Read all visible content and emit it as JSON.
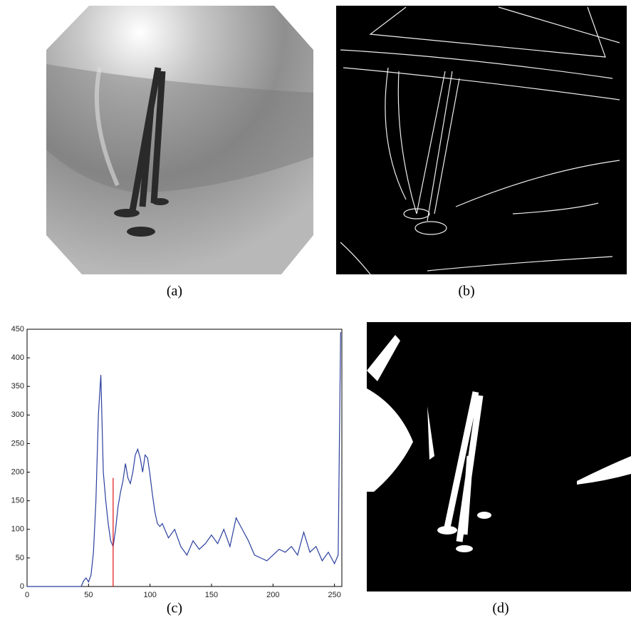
{
  "captions": [
    "(a)",
    "(b)",
    "(c)",
    "(d)"
  ],
  "chart_data": {
    "type": "line",
    "xlim": [
      0,
      256
    ],
    "xticks": [
      0,
      50,
      100,
      150,
      200,
      250
    ],
    "ylim": [
      0,
      450
    ],
    "yticks": [
      0,
      50,
      100,
      150,
      200,
      250,
      300,
      350,
      400,
      450
    ],
    "series": [
      {
        "color": "#2b3f9e",
        "x": [
          0,
          44,
          46,
          48,
          50,
          52,
          54,
          56,
          58,
          60,
          62,
          64,
          66,
          68,
          70,
          72,
          74,
          76,
          78,
          80,
          82,
          84,
          86,
          88,
          90,
          92,
          94,
          96,
          98,
          100,
          102,
          104,
          106,
          108,
          110,
          115,
          120,
          125,
          130,
          135,
          140,
          145,
          150,
          155,
          160,
          165,
          170,
          175,
          180,
          185,
          190,
          195,
          200,
          205,
          210,
          215,
          220,
          225,
          230,
          235,
          240,
          245,
          250,
          253,
          255
        ],
        "values": [
          0,
          0,
          10,
          15,
          8,
          20,
          60,
          150,
          300,
          370,
          200,
          150,
          110,
          80,
          70,
          100,
          140,
          165,
          185,
          215,
          190,
          180,
          200,
          230,
          240,
          225,
          200,
          230,
          225,
          195,
          160,
          130,
          110,
          105,
          110,
          85,
          100,
          70,
          55,
          80,
          65,
          75,
          90,
          75,
          100,
          70,
          120,
          100,
          80,
          55,
          50,
          45,
          55,
          65,
          60,
          70,
          55,
          95,
          60,
          70,
          45,
          60,
          40,
          55,
          445
        ]
      },
      {
        "color": "#e01010",
        "x": [
          70,
          70
        ],
        "values": [
          0,
          190
        ]
      }
    ]
  }
}
